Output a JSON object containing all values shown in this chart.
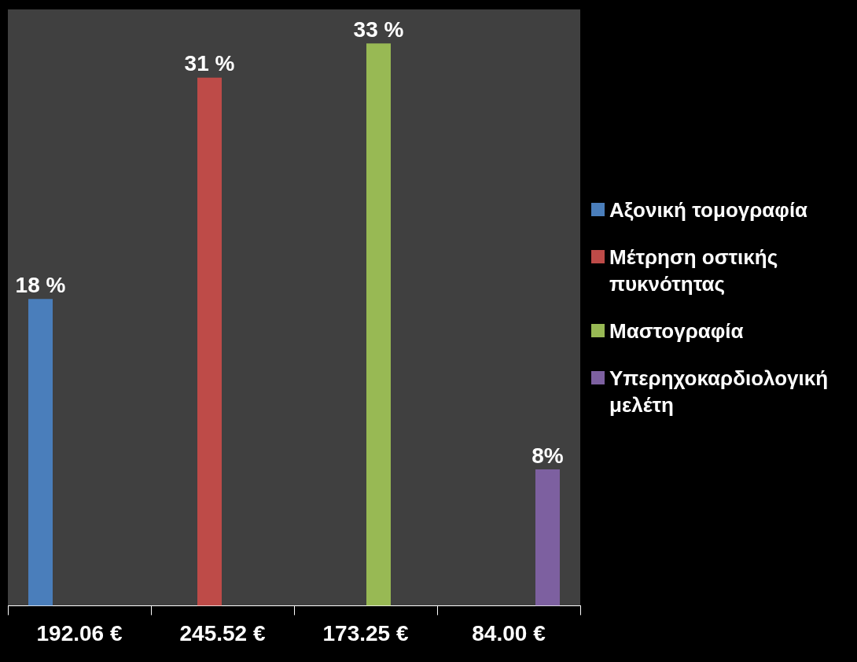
{
  "chart_data": {
    "type": "bar",
    "categories": [
      "192.06 €",
      "245.52 €",
      "173.25 €",
      "84.00 €"
    ],
    "series": [
      {
        "name": "Αξονική τομογραφία",
        "color": "#4a7ebb",
        "values": [
          18,
          null,
          null,
          null
        ],
        "value_labels": [
          "18 %",
          null,
          null,
          null
        ]
      },
      {
        "name": "Μέτρηση οστικής πυκνότητας",
        "color": "#be4b48",
        "values": [
          null,
          31,
          null,
          null
        ],
        "value_labels": [
          null,
          "31 %",
          null,
          null
        ]
      },
      {
        "name": "Μαστογραφία",
        "color": "#98b954",
        "values": [
          null,
          null,
          33,
          null
        ],
        "value_labels": [
          null,
          null,
          "33 %",
          null
        ]
      },
      {
        "name": "Υπερηχοκαρδιολογική μελέτη",
        "color": "#7d60a0",
        "values": [
          null,
          null,
          null,
          8
        ],
        "value_labels": [
          null,
          null,
          null,
          "8%"
        ]
      }
    ],
    "legend": "right",
    "grid": false,
    "tick_labels": "x"
  }
}
